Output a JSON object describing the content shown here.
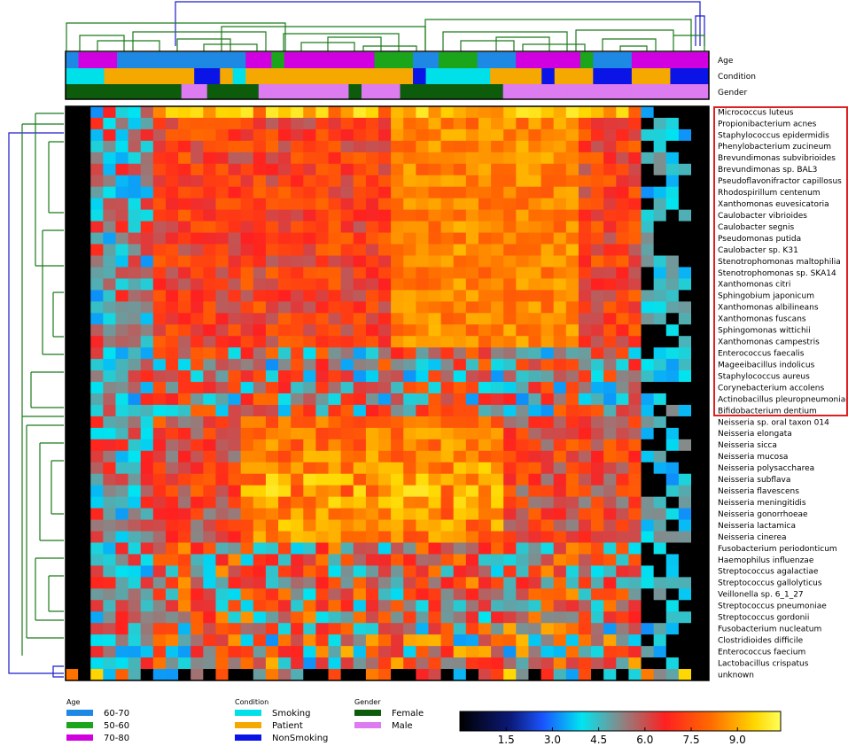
{
  "chart_data": {
    "type": "heatmap",
    "title": "",
    "annotation_tracks": [
      "Age",
      "Condition",
      "Gender"
    ],
    "row_labels": [
      "Micrococcus luteus",
      "Propionibacterium acnes",
      "Staphylococcus epidermidis",
      "Phenylobacterium zucineum",
      "Brevundimonas subvibrioides",
      "Brevundimonas sp. BAL3",
      "Pseudoflavonifractor capillosus",
      "Rhodospirillum centenum",
      "Xanthomonas euvesicatoria",
      "Caulobacter vibrioides",
      "Caulobacter segnis",
      "Pseudomonas putida",
      "Caulobacter sp. K31",
      "Stenotrophomonas maltophilia",
      "Stenotrophomonas sp. SKA14",
      "Xanthomonas citri",
      "Sphingobium japonicum",
      "Xanthomonas albilineans",
      "Xanthomonas fuscans",
      "Sphingomonas wittichii",
      "Xanthomonas campestris",
      "Enterococcus faecalis",
      "Mageeibacillus indolicus",
      "Staphylococcus aureus",
      "Corynebacterium accolens",
      "Actinobacillus pleuropneumoniae",
      "Bifidobacterium dentium",
      "Neisseria sp. oral taxon 014",
      "Neisseria elongata",
      "Neisseria sicca",
      "Neisseria mucosa",
      "Neisseria polysaccharea",
      "Neisseria subflava",
      "Neisseria flavescens",
      "Neisseria meningitidis",
      "Neisseria gonorrhoeae",
      "Neisseria lactamica",
      "Neisseria cinerea",
      "Fusobacterium periodonticum",
      "Haemophilus influenzae",
      "Streptococcus agalactiae",
      "Streptococcus gallolyticus",
      "Veillonella sp. 6_1_27",
      "Streptococcus pneumoniae",
      "Streptococcus gordonii",
      "Fusobacterium nucleatum",
      "Clostridioides difficile",
      "Enterococcus faecium",
      "Lactobacillus crispatus",
      "unknown"
    ],
    "highlighted_rows": {
      "first": 0,
      "last": 26,
      "color": "#e02020"
    },
    "colorbar": {
      "ticks": [
        "1.5",
        "3.0",
        "4.5",
        "6.0",
        "7.5",
        "9.0"
      ],
      "range": [
        0,
        10.4
      ],
      "colormap": [
        "#000000",
        "#0c1a7a",
        "#1a55ff",
        "#00e5f0",
        "#888888",
        "#ff2020",
        "#ff6a00",
        "#ffd700",
        "#ffff5a"
      ]
    },
    "legend": {
      "age": {
        "title": "Age",
        "entries": [
          {
            "label": "60-70",
            "color": "#1e88e5"
          },
          {
            "label": "50-60",
            "color": "#1aa51a"
          },
          {
            "label": "70-80",
            "color": "#d000e0"
          }
        ]
      },
      "condition": {
        "title": "Condition",
        "entries": [
          {
            "label": "Smoking",
            "color": "#00e0e8"
          },
          {
            "label": "Patient",
            "color": "#f5a800"
          },
          {
            "label": "NonSmoking",
            "color": "#0a14e6"
          }
        ]
      },
      "gender": {
        "title": "Gender",
        "entries": [
          {
            "label": "Female",
            "color": "#0c5c0c"
          },
          {
            "label": "Male",
            "color": "#dd7bf0"
          }
        ]
      }
    }
  }
}
